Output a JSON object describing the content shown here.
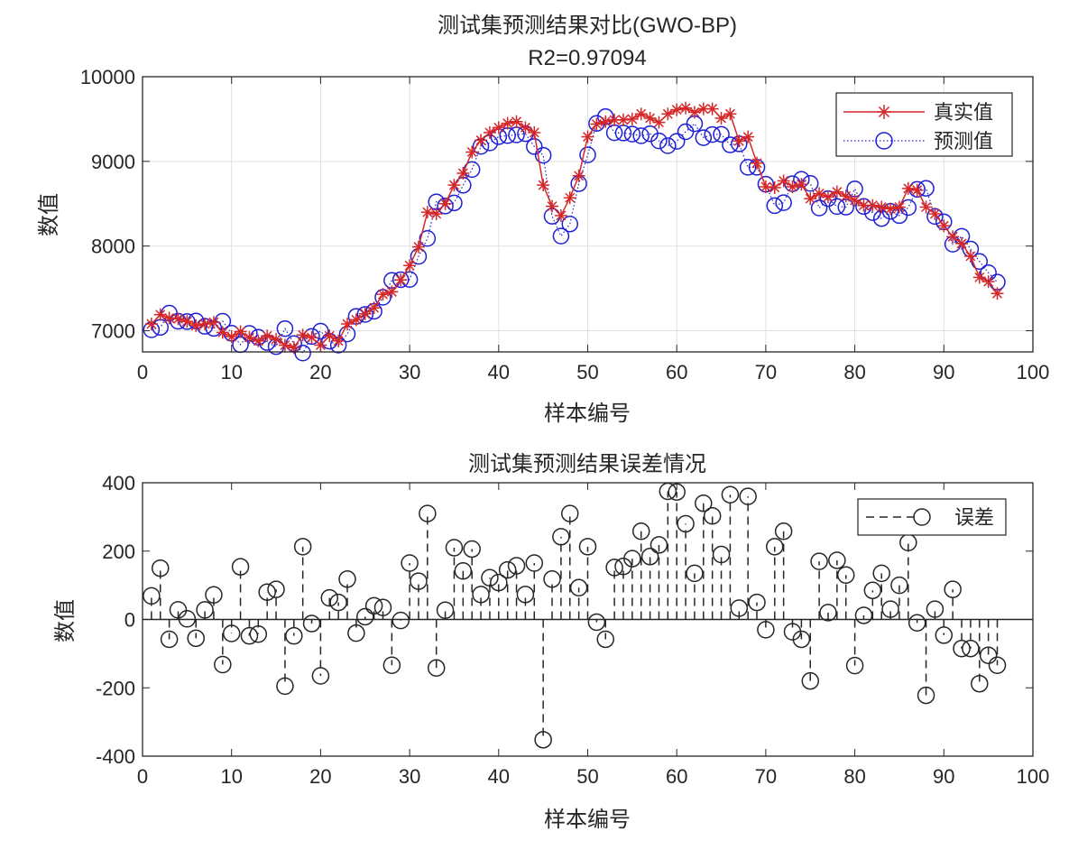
{
  "chart_data": [
    {
      "type": "line",
      "title": "测试集预测结果对比(GWO-BP)",
      "subtitle": "R2=0.97094",
      "xlabel": "样本编号",
      "ylabel": "数值",
      "xlim": [
        0,
        100
      ],
      "ylim": [
        6750,
        10000
      ],
      "xticks": [
        0,
        10,
        20,
        30,
        40,
        50,
        60,
        70,
        80,
        90,
        100
      ],
      "yticks": [
        7000,
        8000,
        9000,
        10000
      ],
      "grid": true,
      "legend_position": "top-right",
      "colors": {
        "true": "#d62728",
        "pred": "#1f1fd6"
      },
      "series": [
        {
          "name": "真实值",
          "marker": "asterisk",
          "line": "solid",
          "values": [
            7080,
            7190,
            7150,
            7140,
            7110,
            7060,
            7080,
            7100,
            6980,
            6930,
            6990,
            6920,
            6880,
            6940,
            6900,
            6830,
            6800,
            6950,
            6920,
            6830,
            6940,
            6880,
            7080,
            7130,
            7200,
            7270,
            7430,
            7460,
            7600,
            7770,
            7990,
            8400,
            8380,
            8500,
            8720,
            8860,
            9110,
            9250,
            9340,
            9400,
            9450,
            9470,
            9400,
            9340,
            8720,
            8470,
            8360,
            8570,
            8830,
            9290,
            9440,
            9470,
            9490,
            9490,
            9500,
            9560,
            9510,
            9460,
            9560,
            9610,
            9630,
            9580,
            9620,
            9620,
            9510,
            9560,
            9240,
            9290,
            8980,
            8700,
            8690,
            8770,
            8700,
            8730,
            8560,
            8620,
            8580,
            8640,
            8590,
            8540,
            8480,
            8480,
            8460,
            8440,
            8460,
            8680,
            8660,
            8460,
            8380,
            8240,
            8110,
            8030,
            7880,
            7630,
            7580,
            7440
          ]
        },
        {
          "name": "预测值",
          "marker": "circle",
          "line": "dotted",
          "values": [
            7011,
            7040,
            7208,
            7112,
            7108,
            7115,
            7052,
            7028,
            7112,
            6971,
            6836,
            6968,
            6923,
            6860,
            6812,
            7025,
            6848,
            6737,
            6932,
            6995,
            6877,
            6830,
            6962,
            7170,
            7192,
            7230,
            7395,
            7594,
            7603,
            7605,
            7878,
            8090,
            8522,
            8473,
            8510,
            8718,
            8904,
            9177,
            9218,
            9292,
            9305,
            9313,
            9327,
            9175,
            9072,
            8352,
            8118,
            8260,
            8737,
            9077,
            9448,
            9528,
            9338,
            9335,
            9322,
            9302,
            9326,
            9242,
            9185,
            9237,
            9350,
            9445,
            9280,
            9317,
            9320,
            9195,
            9207,
            8930,
            8930,
            8730,
            8477,
            8512,
            8736,
            8788,
            8740,
            8450,
            8560,
            8467,
            8460,
            8675,
            8468,
            8395,
            8325,
            8410,
            8360,
            8455,
            8670,
            8682,
            8350,
            8286,
            8022,
            8115,
            7965,
            7818,
            7685,
            7574
          ]
        }
      ]
    },
    {
      "type": "stem",
      "title": "测试集预测结果误差情况",
      "xlabel": "样本编号",
      "ylabel": "数值",
      "xlim": [
        0,
        100
      ],
      "ylim": [
        -400,
        400
      ],
      "xticks": [
        0,
        10,
        20,
        30,
        40,
        50,
        60,
        70,
        80,
        90,
        100
      ],
      "yticks": [
        -400,
        -200,
        0,
        200,
        400
      ],
      "grid": false,
      "legend_position": "top-right",
      "colors": {
        "error": "#262626"
      },
      "series": [
        {
          "name": "误差",
          "marker": "circle",
          "line": "dashed",
          "values": [
            69,
            150,
            -58,
            28,
            2,
            -55,
            28,
            72,
            -132,
            -41,
            154,
            -48,
            -43,
            80,
            88,
            -195,
            -48,
            213,
            -12,
            -165,
            63,
            50,
            118,
            -40,
            8,
            40,
            35,
            -134,
            -3,
            165,
            112,
            310,
            -142,
            27,
            210,
            142,
            206,
            73,
            122,
            108,
            145,
            157,
            73,
            165,
            -352,
            118,
            242,
            310,
            93,
            213,
            -8,
            -58,
            152,
            155,
            178,
            258,
            184,
            218,
            375,
            373,
            280,
            135,
            340,
            303,
            190,
            365,
            33,
            360,
            50,
            -30,
            213,
            258,
            -36,
            -58,
            -180,
            170,
            20,
            173,
            130,
            -135,
            12,
            85,
            135,
            30,
            100,
            225,
            -10,
            -222,
            30,
            -46,
            88,
            -85,
            -85,
            -188,
            -105,
            -134
          ]
        }
      ]
    }
  ]
}
